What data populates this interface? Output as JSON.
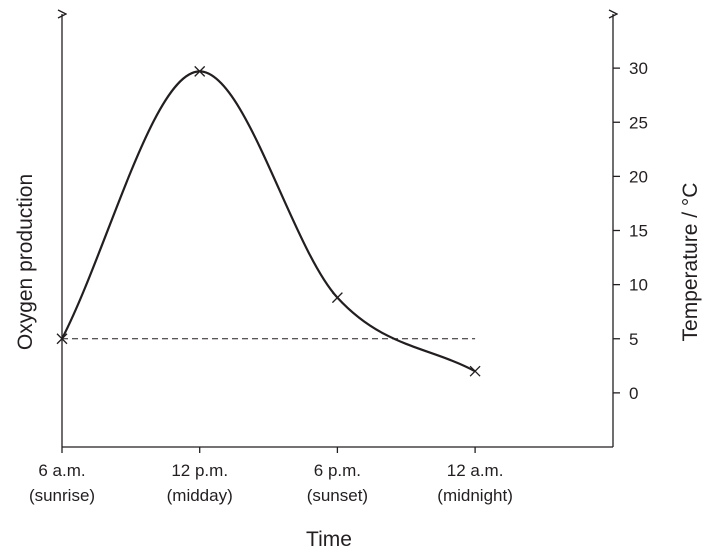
{
  "chart_data": {
    "type": "line",
    "x_categories": [
      {
        "line1": "6 a.m.",
        "line2": "(sunrise)"
      },
      {
        "line1": "12 p.m.",
        "line2": "(midday)"
      },
      {
        "line1": "6 p.m.",
        "line2": "(sunset)"
      },
      {
        "line1": "12 a.m.",
        "line2": "(midnight)"
      }
    ],
    "xlabel": "Time",
    "ylabel_left": "Oxygen production",
    "ylabel_right": "Temperature / °C",
    "right_axis": {
      "ticks": [
        0,
        5,
        10,
        15,
        20,
        25,
        30
      ],
      "ylim": [
        -5,
        35
      ]
    },
    "x_range": [
      0,
      4
    ],
    "series": [
      {
        "points": [
          {
            "x": 0,
            "y": 5
          },
          {
            "x": 1,
            "y": 29.7
          },
          {
            "x": 2,
            "y": 8.8
          },
          {
            "x": 3,
            "y": 2
          }
        ]
      }
    ],
    "reference_line": {
      "y": 5,
      "x_from": 0,
      "x_to": 3,
      "style": "dashed"
    },
    "grid": false,
    "legend": "none"
  }
}
